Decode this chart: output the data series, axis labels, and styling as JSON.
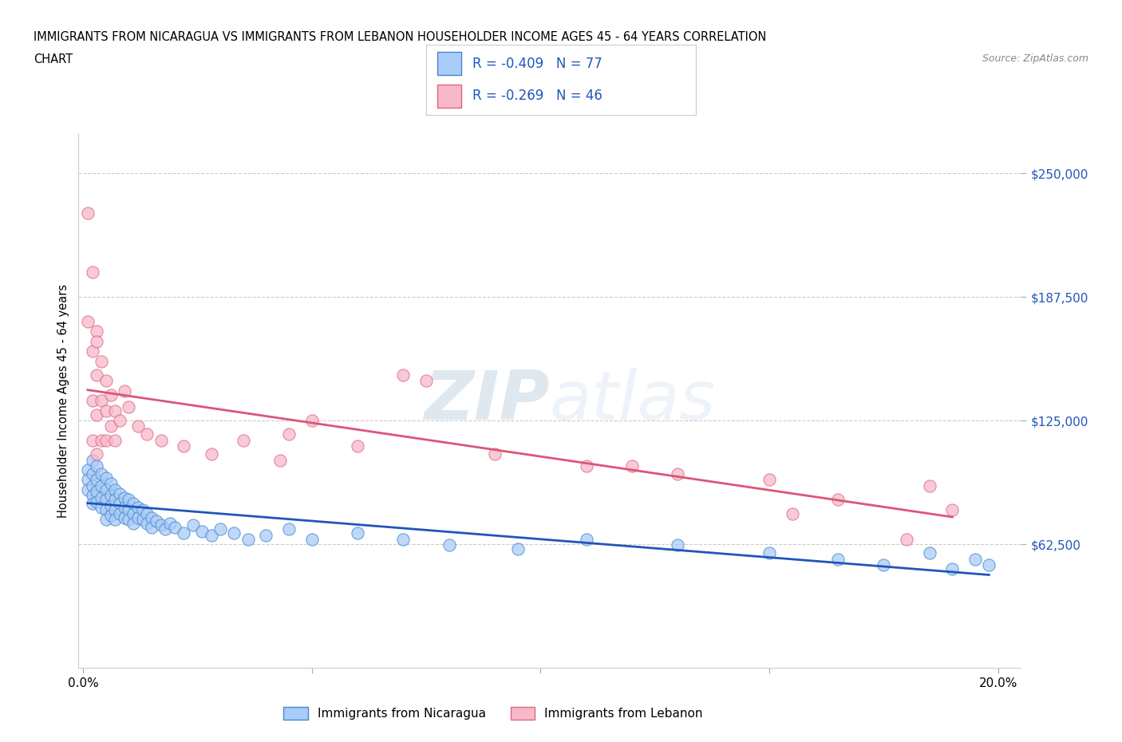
{
  "title_line1": "IMMIGRANTS FROM NICARAGUA VS IMMIGRANTS FROM LEBANON HOUSEHOLDER INCOME AGES 45 - 64 YEARS CORRELATION",
  "title_line2": "CHART",
  "source": "Source: ZipAtlas.com",
  "ylabel": "Householder Income Ages 45 - 64 years",
  "xlim": [
    -0.001,
    0.205
  ],
  "ylim": [
    0,
    270000
  ],
  "yticks": [
    62500,
    125000,
    187500,
    250000
  ],
  "xticks": [
    0.0,
    0.05,
    0.1,
    0.15,
    0.2
  ],
  "xtick_labels": [
    "0.0%",
    "",
    "",
    "",
    "20.0%"
  ],
  "nicaragua_R": -0.409,
  "nicaragua_N": 77,
  "lebanon_R": -0.269,
  "lebanon_N": 46,
  "nicaragua_color": "#AACCF8",
  "lebanon_color": "#F8B8C8",
  "nicaragua_edge_color": "#4488CC",
  "lebanon_edge_color": "#DD6688",
  "nicaragua_line_color": "#2255BB",
  "lebanon_line_color": "#DD5577",
  "stat_color": "#2255BB",
  "watermark_zip": "ZIP",
  "watermark_atlas": "atlas",
  "background_color": "#FFFFFF",
  "legend_label_nicaragua": "Immigrants from Nicaragua",
  "legend_label_lebanon": "Immigrants from Lebanon",
  "nicaragua_x": [
    0.001,
    0.001,
    0.001,
    0.002,
    0.002,
    0.002,
    0.002,
    0.002,
    0.003,
    0.003,
    0.003,
    0.003,
    0.004,
    0.004,
    0.004,
    0.004,
    0.005,
    0.005,
    0.005,
    0.005,
    0.005,
    0.006,
    0.006,
    0.006,
    0.006,
    0.007,
    0.007,
    0.007,
    0.007,
    0.008,
    0.008,
    0.008,
    0.009,
    0.009,
    0.009,
    0.01,
    0.01,
    0.01,
    0.011,
    0.011,
    0.011,
    0.012,
    0.012,
    0.013,
    0.013,
    0.014,
    0.014,
    0.015,
    0.015,
    0.016,
    0.017,
    0.018,
    0.019,
    0.02,
    0.022,
    0.024,
    0.026,
    0.028,
    0.03,
    0.033,
    0.036,
    0.04,
    0.045,
    0.05,
    0.06,
    0.07,
    0.08,
    0.095,
    0.11,
    0.13,
    0.15,
    0.165,
    0.175,
    0.185,
    0.19,
    0.195,
    0.198
  ],
  "nicaragua_y": [
    100000,
    95000,
    90000,
    105000,
    98000,
    92000,
    87000,
    83000,
    102000,
    95000,
    89000,
    84000,
    98000,
    92000,
    86000,
    81000,
    96000,
    90000,
    85000,
    80000,
    75000,
    93000,
    87000,
    82000,
    77000,
    90000,
    85000,
    80000,
    75000,
    88000,
    83000,
    78000,
    86000,
    81000,
    76000,
    85000,
    80000,
    75000,
    83000,
    78000,
    73000,
    81000,
    76000,
    80000,
    75000,
    78000,
    73000,
    76000,
    71000,
    74000,
    72000,
    70000,
    73000,
    71000,
    68000,
    72000,
    69000,
    67000,
    70000,
    68000,
    65000,
    67000,
    70000,
    65000,
    68000,
    65000,
    62000,
    60000,
    65000,
    62000,
    58000,
    55000,
    52000,
    58000,
    50000,
    55000,
    52000
  ],
  "lebanon_x": [
    0.001,
    0.001,
    0.002,
    0.002,
    0.002,
    0.002,
    0.003,
    0.003,
    0.003,
    0.003,
    0.003,
    0.004,
    0.004,
    0.004,
    0.005,
    0.005,
    0.005,
    0.006,
    0.006,
    0.007,
    0.007,
    0.008,
    0.009,
    0.01,
    0.012,
    0.014,
    0.017,
    0.022,
    0.028,
    0.035,
    0.043,
    0.05,
    0.06,
    0.075,
    0.09,
    0.11,
    0.13,
    0.15,
    0.165,
    0.18,
    0.185,
    0.19,
    0.155,
    0.07,
    0.045,
    0.12
  ],
  "lebanon_y": [
    230000,
    175000,
    200000,
    160000,
    135000,
    115000,
    170000,
    148000,
    128000,
    108000,
    165000,
    155000,
    135000,
    115000,
    145000,
    130000,
    115000,
    138000,
    122000,
    130000,
    115000,
    125000,
    140000,
    132000,
    122000,
    118000,
    115000,
    112000,
    108000,
    115000,
    105000,
    125000,
    112000,
    145000,
    108000,
    102000,
    98000,
    95000,
    85000,
    65000,
    92000,
    80000,
    78000,
    148000,
    118000,
    102000
  ]
}
